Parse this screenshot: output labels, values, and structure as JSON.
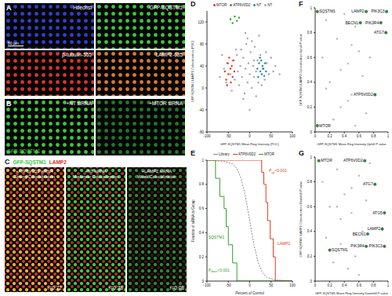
{
  "panels": [
    {
      "label": "A",
      "scale_bar": "50 µm",
      "images": [
        {
          "text": "Hoechst",
          "color": "#2f3fd8"
        },
        {
          "text": "GFP-SQSTM1",
          "color": "#3cc83c"
        },
        {
          "text": "β-tubulin-555",
          "color": "#e0302a"
        },
        {
          "text": "LAMP2-635",
          "color": "#e0782a"
        }
      ]
    },
    {
      "label": "B",
      "title": "GFP-SQSTM1",
      "title_color": "#3cc83c",
      "images": [
        {
          "text": "+NT siRNA",
          "color": "#3cc83c"
        },
        {
          "text": "+MTOR siRNA",
          "color": "#1f7a28"
        }
      ]
    },
    {
      "label": "C",
      "title_parts": [
        {
          "text": "GFP-SQSTM1",
          "color": "#3cc83c"
        },
        {
          "text": "LAMP2",
          "color": "#e0302a"
        }
      ],
      "images": [
        {
          "text": "+ATP6V0D2 siRNA",
          "subtext": "Strong Colocalization",
          "r": "r=0.72",
          "color": "#d8b030",
          "color2": "#e0302a"
        },
        {
          "text": "+NT siRNA",
          "subtext": "Moderate Colocalization",
          "r": "r=0.38",
          "color": "#3cc83c",
          "color2": "#b03020"
        },
        {
          "text": "+LAMP2 siRNA",
          "subtext": "Weak Colocalization",
          "r": "r=0.08",
          "color": "#2c8a2c",
          "color2": "#401810"
        }
      ]
    }
  ],
  "chart_data": [
    {
      "label": "D",
      "type": "scatter",
      "x_label": "GFP-SQSTM1 Mean Ring Intensity (POC)",
      "y_label": "GFP-SQSTM1:LAMP2 Colocalization (POC)",
      "xlim": [
        -100,
        100
      ],
      "xticks": [
        -100,
        -50,
        0,
        50,
        100
      ],
      "ylim": [
        -80,
        140
      ],
      "yticks": [
        -80,
        -40,
        0,
        40,
        80,
        120
      ],
      "legend": "top",
      "series": [
        {
          "name": "MTOR",
          "color": "#e03a1e",
          "x": [
            -58,
            -55,
            -52,
            -50,
            -48,
            -45,
            -44,
            -42,
            -40,
            -38,
            -36,
            -53
          ],
          "values": [
            30,
            15,
            45,
            25,
            55,
            35,
            10,
            40,
            20,
            50,
            30,
            5
          ]
        },
        {
          "name": "ATP6V0D2",
          "color": "#2ca02c",
          "x": [
            -45,
            -40,
            -35,
            -30,
            -25
          ],
          "values": [
            125,
            118,
            130,
            122,
            128
          ]
        },
        {
          "name": "NT",
          "color": "#1f8f8a",
          "x": [
            18,
            20,
            22,
            25,
            27,
            28,
            30,
            32,
            34,
            36,
            38,
            24
          ],
          "values": [
            35,
            20,
            45,
            30,
            50,
            25,
            40,
            35,
            22,
            45,
            30,
            55
          ]
        },
        {
          "name": "NT",
          "color": "#a8a8a8",
          "x": [
            -70,
            -60,
            -55,
            -50,
            -45,
            -40,
            -35,
            -30,
            -28,
            -25,
            -22,
            -20,
            -18,
            -15,
            -12,
            -10,
            -8,
            -5,
            -3,
            0,
            2,
            5,
            8,
            10,
            12,
            15,
            18,
            20,
            25,
            30,
            35,
            40,
            45,
            50,
            55,
            60,
            -42,
            -32,
            -15,
            -5,
            5,
            15,
            28,
            38,
            -65,
            70,
            -10,
            0,
            10,
            22
          ],
          "values": [
            20,
            35,
            10,
            45,
            25,
            50,
            15,
            60,
            30,
            5,
            40,
            70,
            20,
            55,
            -10,
            35,
            80,
            10,
            45,
            25,
            65,
            0,
            40,
            20,
            75,
            30,
            50,
            10,
            60,
            35,
            15,
            45,
            25,
            55,
            30,
            40,
            -5,
            70,
            -20,
            90,
            85,
            -15,
            5,
            65,
            60,
            25,
            100,
            -40,
            50,
            95
          ]
        }
      ]
    },
    {
      "label": "E",
      "type": "line",
      "x_label": "Percent of Control",
      "y_label": "Fraction of siRNA in Group",
      "xlim": [
        -100,
        100
      ],
      "xticks": [
        -100,
        -50,
        0,
        50,
        100
      ],
      "ylim": [
        0,
        1
      ],
      "yticks": [
        0,
        0.2,
        0.4,
        0.6,
        0.8,
        1
      ],
      "legend": "top",
      "series": [
        {
          "name": "Library",
          "color": "#888888",
          "line_style": "dashed",
          "x": [
            -100,
            -60,
            -40,
            -30,
            -20,
            -10,
            0,
            10,
            20,
            30,
            40,
            60,
            100
          ],
          "values": [
            1,
            0.99,
            0.97,
            0.93,
            0.85,
            0.7,
            0.5,
            0.3,
            0.15,
            0.07,
            0.03,
            0.01,
            0
          ]
        },
        {
          "name": "ATP6V0D2",
          "color": "#e03a1e",
          "type": "step",
          "x": [
            -100,
            20,
            28,
            33,
            38,
            42,
            48,
            55,
            60,
            100
          ],
          "values": [
            1,
            1,
            0.9,
            0.8,
            0.65,
            0.5,
            0.35,
            0.2,
            0,
            0
          ]
        },
        {
          "name": "MTOR",
          "color": "#2ca02c",
          "type": "step",
          "x": [
            -100,
            -80,
            -70,
            -60,
            -55,
            -50,
            -40,
            -30,
            100
          ],
          "values": [
            1,
            0.85,
            0.7,
            0.6,
            0.45,
            0.3,
            0.15,
            0,
            0
          ]
        }
      ],
      "annotations": [
        {
          "text": "LAMP2",
          "color": "#e03a1e",
          "x": 65,
          "y": 0.3
        },
        {
          "text": "SQSTM1",
          "color": "#2ca02c",
          "x": -97,
          "y": 0.35
        },
        {
          "text": "P",
          "sub": "up",
          "suffix": "<0.001",
          "color": "#e03a1e",
          "x": 45,
          "y": 0.9
        },
        {
          "text": "P",
          "sub": "down",
          "suffix": "<0.001",
          "color": "#2ca02c",
          "x": -97,
          "y": 0.08
        }
      ]
    },
    {
      "label": "F",
      "type": "scatter",
      "x_label": "GFP-SQSTM1 Mean Ring Intensity Uphill P value",
      "y_label": "GFP-SQSTM1:LAMP2 Colocalization Uphill P value",
      "xlim": [
        0,
        1
      ],
      "xticks": [
        0,
        0.2,
        0.4,
        0.6,
        0.8,
        1
      ],
      "ylim": [
        0,
        1
      ],
      "yticks": [
        0,
        0.2,
        0.4,
        0.6,
        0.8,
        1
      ],
      "series": [
        {
          "color": "#b5b5b5",
          "x": [
            0.1,
            0.15,
            0.2,
            0.3,
            0.35,
            0.4,
            0.45,
            0.5,
            0.55,
            0.6,
            0.65,
            0.7,
            0.25,
            0.5,
            0.6,
            0.35,
            0.75,
            0.45,
            0.15,
            0.55
          ],
          "values": [
            0.6,
            0.9,
            0.4,
            0.75,
            0.2,
            0.95,
            0.55,
            0.3,
            0.85,
            0.65,
            0.45,
            0.15,
            0.1,
            0.7,
            0.98,
            0.5,
            0.6,
            0.25,
            0.35,
            0.05
          ]
        },
        {
          "color": "#2e8b3a",
          "x": [
            0.03,
            0.03,
            0.7,
            0.98,
            0.62,
            0.9,
            0.97,
            0.82
          ],
          "values": [
            0.97,
            0.05,
            0.97,
            0.97,
            0.88,
            0.88,
            0.8,
            0.3
          ],
          "point_labels": [
            "SQSTM1",
            "MTOR",
            "LAMP2",
            "PIK3C3",
            "BECN1",
            "PIK3R4",
            "ATG7",
            "ATP6V0D2"
          ]
        }
      ]
    },
    {
      "label": "G",
      "type": "scatter",
      "x_label": "GFP-SQSTM1 Mean Ring Intensity Downhill P value",
      "y_label": "GFP-SQSTM1:LAMP2 Colocalization Downhill P value",
      "xlim": [
        0,
        1
      ],
      "xticks": [
        0,
        0.2,
        0.4,
        0.6,
        0.8,
        1
      ],
      "ylim": [
        0,
        1
      ],
      "yticks": [
        0,
        0.2,
        0.4,
        0.6,
        0.8,
        1
      ],
      "series": [
        {
          "color": "#b5b5b5",
          "x": [
            0.1,
            0.2,
            0.3,
            0.35,
            0.4,
            0.5,
            0.55,
            0.6,
            0.65,
            0.7,
            0.15,
            0.45,
            0.25,
            0.75,
            0.35,
            0.5,
            0.6,
            0.2,
            0.4,
            0.3
          ],
          "values": [
            0.8,
            0.6,
            0.9,
            0.3,
            0.7,
            0.55,
            0.2,
            0.85,
            0.4,
            0.65,
            0.35,
            0.1,
            0.15,
            0.95,
            0.5,
            0.75,
            0.05,
            0.98,
            0.25,
            0.6
          ]
        },
        {
          "color": "#2e8b3a",
          "x": [
            0.05,
            0.68,
            0.82,
            0.95,
            0.92,
            0.72,
            0.7,
            0.95,
            0.2
          ],
          "values": [
            0.97,
            0.97,
            0.78,
            0.55,
            0.42,
            0.38,
            0.28,
            0.28,
            0.25
          ],
          "point_labels": [
            "MTOR",
            "ATP6V0D2",
            "ATG7",
            "ATG5",
            "LAMP2",
            "BECN1",
            "PIK3R4",
            "PIK3C3",
            "SQSTM1"
          ]
        }
      ]
    }
  ]
}
